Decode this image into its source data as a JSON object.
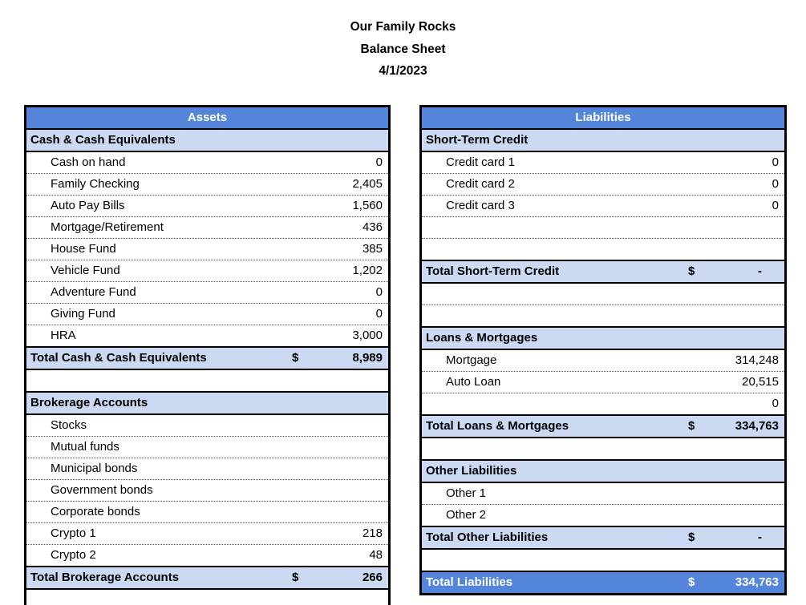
{
  "page_title": {
    "company": "Our Family Rocks",
    "report": "Balance Sheet",
    "date": "4/1/2023"
  },
  "colors": {
    "header_blue": "#5585DB",
    "section_blue": "#CBD9F2",
    "border_black": "#000000"
  },
  "tables": {
    "assets": {
      "header": "Assets",
      "rows": [
        {
          "type": "section",
          "label": "Cash & Cash Equivalents"
        },
        {
          "type": "item",
          "label": "Cash on hand",
          "amount": "0"
        },
        {
          "type": "item",
          "label": "Family Checking",
          "amount": "2,405"
        },
        {
          "type": "item",
          "label": "Auto Pay Bills",
          "amount": "1,560"
        },
        {
          "type": "item",
          "label": "Mortgage/Retirement",
          "amount": "436"
        },
        {
          "type": "item",
          "label": "House Fund",
          "amount": "385"
        },
        {
          "type": "item",
          "label": "Vehicle Fund",
          "amount": "1,202"
        },
        {
          "type": "item",
          "label": "Adventure Fund",
          "amount": "0"
        },
        {
          "type": "item",
          "label": "Giving Fund",
          "amount": "0"
        },
        {
          "type": "item",
          "label": "HRA",
          "amount": "3,000"
        },
        {
          "type": "total",
          "label": "Total Cash & Cash Equivalents",
          "currency": "$",
          "amount": "8,989"
        },
        {
          "type": "blank",
          "label": "",
          "amount": ""
        },
        {
          "type": "section",
          "label": "Brokerage Accounts"
        },
        {
          "type": "item",
          "label": "Stocks",
          "amount": ""
        },
        {
          "type": "item",
          "label": "Mutual funds",
          "amount": ""
        },
        {
          "type": "item",
          "label": "Municipal bonds",
          "amount": ""
        },
        {
          "type": "item",
          "label": "Government bonds",
          "amount": ""
        },
        {
          "type": "item",
          "label": "Corporate bonds",
          "amount": ""
        },
        {
          "type": "item",
          "label": "Crypto 1",
          "amount": "218"
        },
        {
          "type": "item",
          "label": "Crypto 2",
          "amount": "48"
        },
        {
          "type": "total",
          "label": "Total Brokerage Accounts",
          "currency": "$",
          "amount": "266"
        },
        {
          "type": "blank",
          "label": "",
          "amount": ""
        }
      ]
    },
    "liabilities": {
      "header": "Liabilities",
      "rows": [
        {
          "type": "section",
          "label": "Short-Term Credit"
        },
        {
          "type": "item",
          "label": "Credit card 1",
          "amount": "0"
        },
        {
          "type": "item",
          "label": "Credit card 2",
          "amount": "0"
        },
        {
          "type": "item",
          "label": "Credit card 3",
          "amount": "0"
        },
        {
          "type": "blank",
          "label": "",
          "amount": ""
        },
        {
          "type": "blank",
          "label": "",
          "amount": ""
        },
        {
          "type": "total",
          "label": "Total Short-Term Credit",
          "currency": "$",
          "amount": "-"
        },
        {
          "type": "blank",
          "label": "",
          "amount": ""
        },
        {
          "type": "blank",
          "label": "",
          "amount": ""
        },
        {
          "type": "section",
          "label": "Loans & Mortgages"
        },
        {
          "type": "item",
          "label": "Mortgage",
          "amount": "314,248"
        },
        {
          "type": "item",
          "label": "Auto Loan",
          "amount": "20,515"
        },
        {
          "type": "item",
          "label": "",
          "amount": "0"
        },
        {
          "type": "total",
          "label": "Total Loans & Mortgages",
          "currency": "$",
          "amount": "334,763"
        },
        {
          "type": "blank",
          "label": "",
          "amount": ""
        },
        {
          "type": "section",
          "label": "Other Liabilities"
        },
        {
          "type": "item",
          "label": "Other 1",
          "amount": ""
        },
        {
          "type": "item",
          "label": "Other 2",
          "amount": ""
        },
        {
          "type": "total",
          "label": "Total Other Liabilities",
          "currency": "$",
          "amount": "-"
        },
        {
          "type": "blank",
          "label": "",
          "amount": ""
        },
        {
          "type": "grand",
          "label": "Total Liabilities",
          "currency": "$",
          "amount": "334,763"
        }
      ]
    }
  }
}
